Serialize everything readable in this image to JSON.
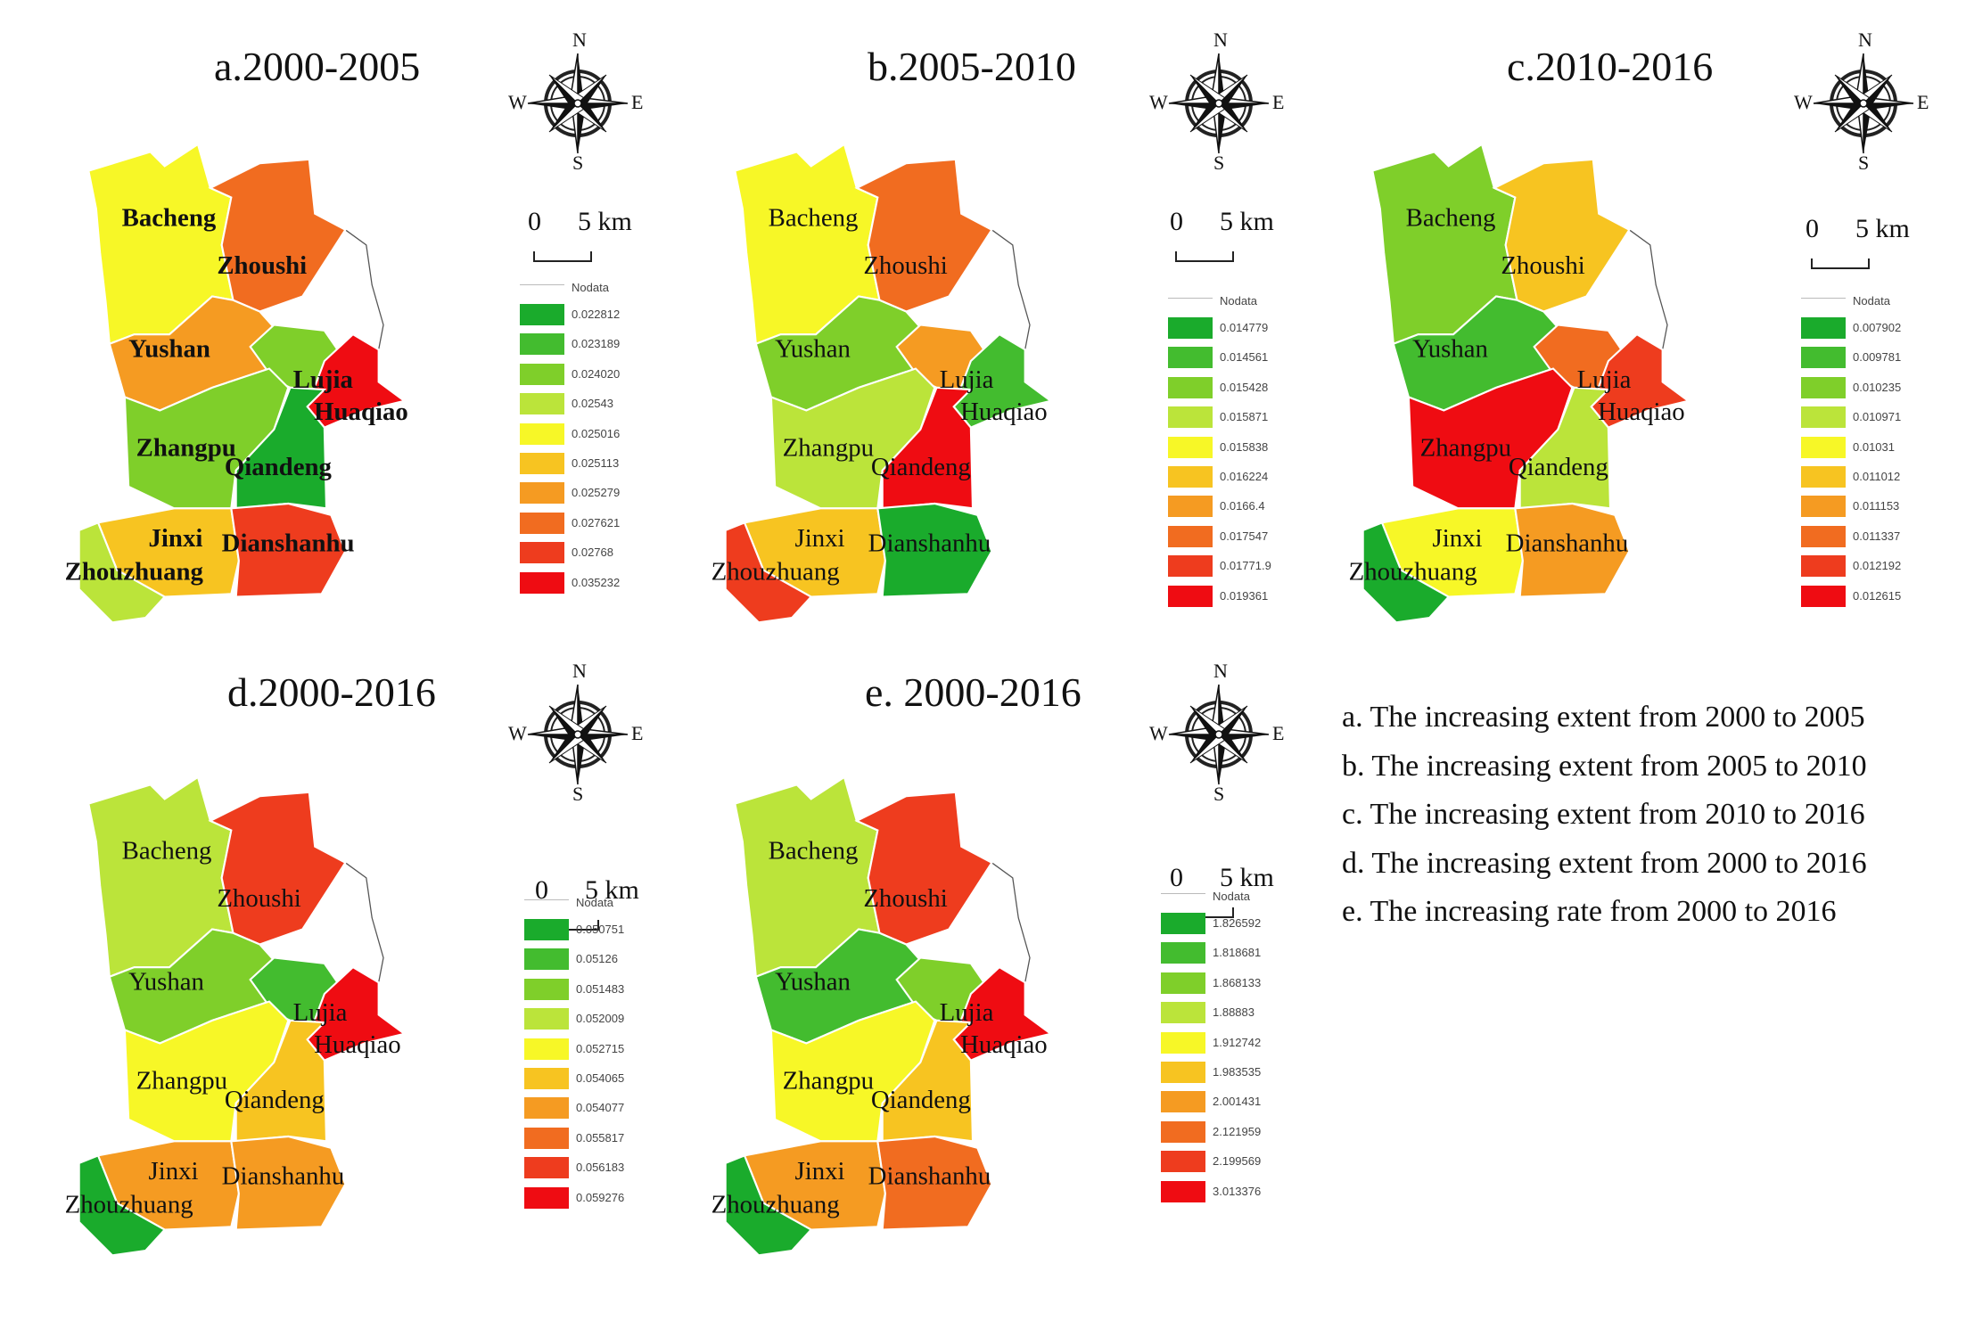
{
  "colors": {
    "ramp": [
      "#1aab2c",
      "#43bc2f",
      "#7fcf2a",
      "#bbe43a",
      "#f7f727",
      "#f7c421",
      "#f59b22",
      "#f16c20",
      "#ee3c1e",
      "#ef0c12"
    ],
    "stroke": "#ffffff"
  },
  "panels": [
    {
      "key": "a",
      "title": "a.2000-2005",
      "label_style": "bold",
      "town_classes": {
        "Bacheng": 4,
        "Zhoushi": 7,
        "Yushan": 6,
        "Lujia": 2,
        "Huaqiao": 9,
        "Zhangpu": 2,
        "Qiandeng": 0,
        "Jinxi": 5,
        "Dianshanhu": 8,
        "Zhouzhuang": 3
      },
      "legend": {
        "nodata": "Nodata",
        "values": [
          "0.022812",
          "0.023189",
          "0.024020",
          "0.02543",
          "0.025016",
          "0.025113",
          "0.025279",
          "0.027621",
          "0.02768",
          "0.035232"
        ]
      }
    },
    {
      "key": "b",
      "title": "b.2005-2010",
      "label_style": "normal",
      "town_classes": {
        "Bacheng": 4,
        "Zhoushi": 7,
        "Yushan": 2,
        "Lujia": 6,
        "Huaqiao": 1,
        "Zhangpu": 3,
        "Qiandeng": 9,
        "Jinxi": 5,
        "Dianshanhu": 0,
        "Zhouzhuang": 8
      },
      "legend": {
        "nodata": "Nodata",
        "values": [
          "0.014779",
          "0.014561",
          "0.015428",
          "0.015871",
          "0.015838",
          "0.016224",
          "0.0166.4",
          "0.017547",
          "0.01771.9",
          "0.019361"
        ]
      }
    },
    {
      "key": "c",
      "title": "c.2010-2016",
      "label_style": "normal",
      "town_classes": {
        "Bacheng": 2,
        "Zhoushi": 5,
        "Yushan": 1,
        "Lujia": 7,
        "Huaqiao": 8,
        "Zhangpu": 9,
        "Qiandeng": 3,
        "Jinxi": 4,
        "Dianshanhu": 6,
        "Zhouzhuang": 0
      },
      "legend": {
        "nodata": "Nodata",
        "values": [
          "0.007902",
          "0.009781",
          "0.010235",
          "0.010971",
          "0.01031",
          "0.011012",
          "0.011153",
          "0.011337",
          "0.012192",
          "0.012615"
        ]
      }
    },
    {
      "key": "d",
      "title": "d.2000-2016",
      "label_style": "normal",
      "town_classes": {
        "Bacheng": 3,
        "Zhoushi": 8,
        "Yushan": 2,
        "Lujia": 1,
        "Huaqiao": 9,
        "Zhangpu": 4,
        "Qiandeng": 5,
        "Jinxi": 6,
        "Dianshanhu": 6,
        "Zhouzhuang": 0
      },
      "legend": {
        "nodata": "Nodata",
        "values": [
          "0.050751",
          "0.05126",
          "0.051483",
          "0.052009",
          "0.052715",
          "0.054065",
          "0.054077",
          "0.055817",
          "0.056183",
          "0.059276"
        ]
      }
    },
    {
      "key": "e",
      "title": "e. 2000-2016",
      "label_style": "normal",
      "town_classes": {
        "Bacheng": 3,
        "Zhoushi": 8,
        "Yushan": 1,
        "Lujia": 2,
        "Huaqiao": 9,
        "Zhangpu": 4,
        "Qiandeng": 5,
        "Jinxi": 6,
        "Dianshanhu": 7,
        "Zhouzhuang": 0
      },
      "legend": {
        "nodata": "Nodata",
        "values": [
          "1.826592",
          "1.818681",
          "1.868133",
          "1.88883",
          "1.912742",
          "1.983535",
          "2.001431",
          "2.121959",
          "2.199569",
          "3.013376"
        ]
      }
    }
  ],
  "compass": {
    "n": "N",
    "s": "S",
    "e": "E",
    "w": "W"
  },
  "scale": {
    "zero": "0",
    "five": "5 km"
  },
  "notes": [
    "a. The increasing extent from 2000 to 2005",
    "b. The  increasing extent from 2005 to 2010",
    "c. The  increasing extent from 2010 to 2016",
    "d. The  increasing extent from 2000 to 2016",
    "e. The  increasing rate from 2000 to 2016"
  ]
}
